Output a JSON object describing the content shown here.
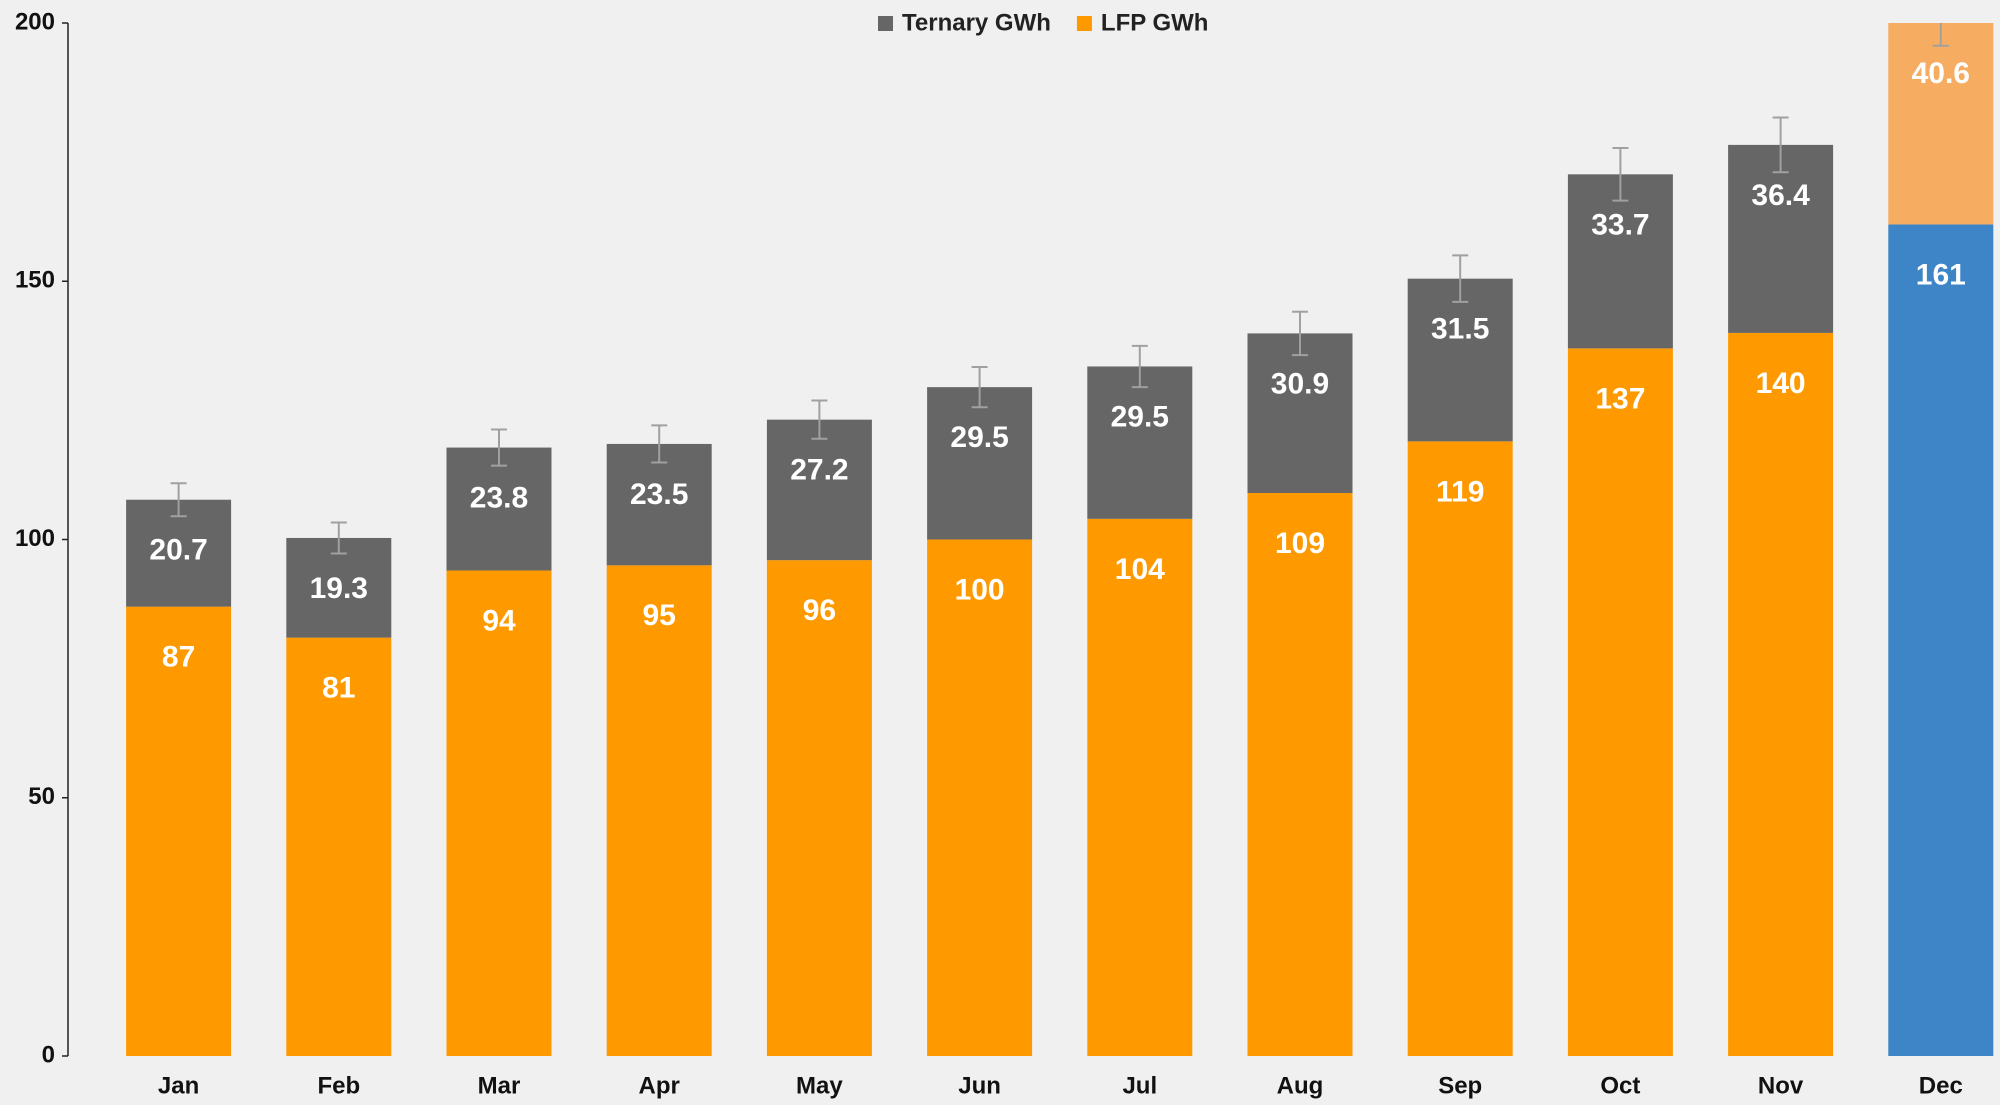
{
  "chart_data": {
    "type": "stacked_bar",
    "categories": [
      "Jan",
      "Feb",
      "Mar",
      "Apr",
      "May",
      "Jun",
      "Jul",
      "Aug",
      "Sep",
      "Oct",
      "Nov",
      "Dec"
    ],
    "series": [
      {
        "name": "Ternary GWh",
        "color": "#666666",
        "colors": [
          "#666666",
          "#666666",
          "#666666",
          "#666666",
          "#666666",
          "#666666",
          "#666666",
          "#666666",
          "#666666",
          "#666666",
          "#666666",
          "#f6ad62"
        ],
        "values": [
          20.7,
          19.3,
          23.8,
          23.5,
          27.2,
          29.5,
          29.5,
          30.9,
          31.5,
          33.7,
          36.4,
          40.6
        ],
        "errors": [
          3.2,
          3.0,
          3.5,
          3.6,
          3.7,
          3.9,
          4.0,
          4.2,
          4.5,
          5.1,
          5.3,
          6.0
        ]
      },
      {
        "name": "LFP GWh",
        "color": "#ff9900",
        "colors": [
          "#ff9900",
          "#ff9900",
          "#ff9900",
          "#ff9900",
          "#ff9900",
          "#ff9900",
          "#ff9900",
          "#ff9900",
          "#ff9900",
          "#ff9900",
          "#ff9900",
          "#3d85c6"
        ],
        "values": [
          87,
          81,
          94,
          95,
          96,
          100,
          104,
          109,
          119,
          137,
          140,
          161
        ]
      }
    ],
    "ylim": [
      0,
      200
    ],
    "yticks": [
      0,
      50,
      100,
      150,
      200
    ],
    "legend": "top",
    "error_color": "#a0a0a0"
  }
}
